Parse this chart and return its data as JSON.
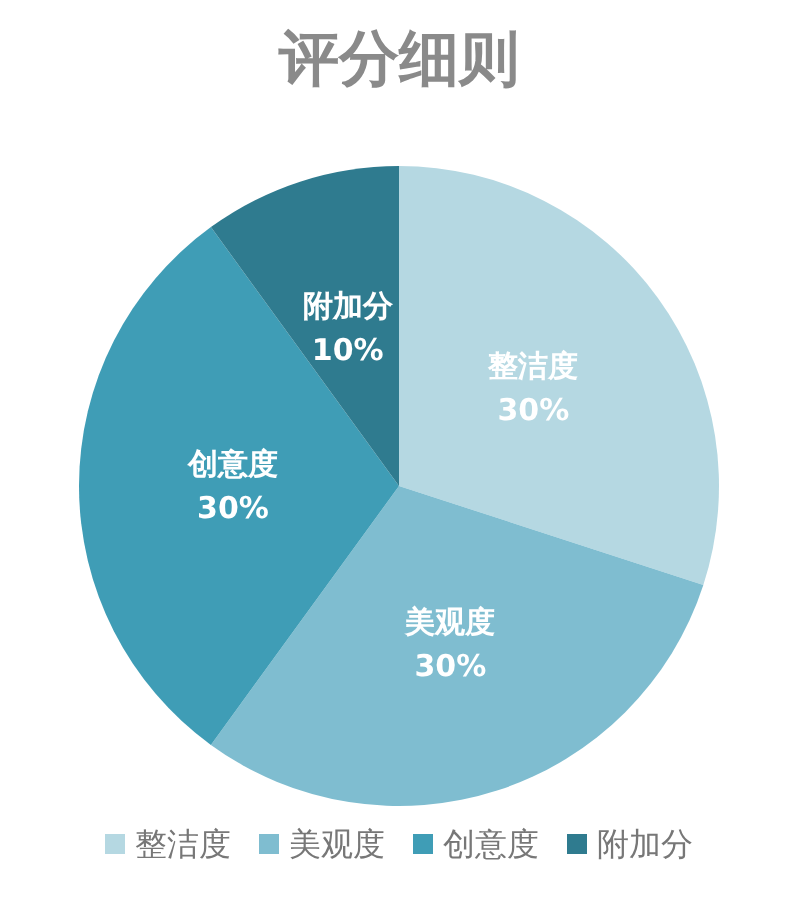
{
  "chart_data": {
    "type": "pie",
    "title": "评分细则",
    "categories": [
      "整洁度",
      "美观度",
      "创意度",
      "附加分"
    ],
    "values": [
      30,
      30,
      30,
      10
    ],
    "colors": [
      "#b5d8e2",
      "#7fbdd0",
      "#3f9db6",
      "#2f7b8f"
    ],
    "value_labels": [
      "30%",
      "30%",
      "30%",
      "10%"
    ],
    "legend": "bottom"
  }
}
